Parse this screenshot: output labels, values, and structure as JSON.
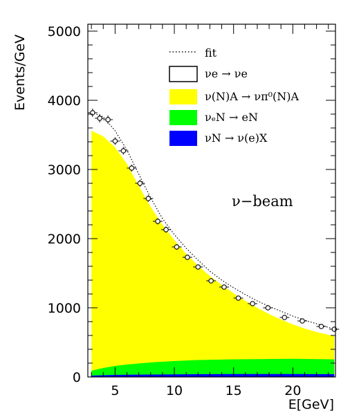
{
  "chart_data": {
    "type": "area",
    "xlabel": "E[GeV]",
    "ylabel": "Events/GeV",
    "xlim": [
      2.7,
      23.6
    ],
    "ylim": [
      0,
      5100
    ],
    "x_ticks": [
      5,
      10,
      15,
      20
    ],
    "y_ticks": [
      0,
      1000,
      2000,
      3000,
      4000,
      5000
    ],
    "annotation": "ν−beam",
    "legend_position": "top-right",
    "legend": [
      {
        "label": "fit",
        "style": "dotted-line",
        "color": "#000000"
      },
      {
        "label": "νe → νe",
        "style": "open-box",
        "color": "#ffffff"
      },
      {
        "label": "ν(N)A → νπ⁰(N)A",
        "style": "filled-box",
        "color": "#ffff00"
      },
      {
        "label": "νₑN → eN",
        "style": "filled-box",
        "color": "#00ff00"
      },
      {
        "label": "νN → ν(e)X",
        "style": "filled-box",
        "color": "#0000ff"
      }
    ],
    "series": [
      {
        "name": "νN → ν(e)X",
        "color": "#0000ff",
        "x": [
          3.0,
          4,
          5,
          6,
          8,
          10,
          12,
          15,
          18,
          20,
          23.5
        ],
        "y": [
          20,
          25,
          30,
          32,
          35,
          38,
          40,
          42,
          42,
          42,
          40
        ]
      },
      {
        "name": "νₑN → eN",
        "color": "#00ff00",
        "x": [
          3.0,
          4,
          5,
          6,
          8,
          10,
          12,
          15,
          18,
          20,
          23.5
        ],
        "y": [
          90,
          130,
          160,
          180,
          210,
          230,
          245,
          255,
          260,
          262,
          255
        ]
      },
      {
        "name": "ν(N)A → νπ⁰(N)A",
        "color": "#ffff00",
        "x": [
          3.0,
          4,
          5,
          6,
          7,
          8,
          9,
          10,
          11,
          12,
          13,
          14,
          15,
          16,
          17,
          18,
          19,
          20,
          21,
          22,
          23.5
        ],
        "y": [
          3560,
          3480,
          3320,
          3080,
          2760,
          2460,
          2200,
          1980,
          1780,
          1610,
          1460,
          1330,
          1210,
          1100,
          1000,
          910,
          830,
          760,
          700,
          650,
          590
        ]
      },
      {
        "name": "fit",
        "style": "dotted",
        "x": [
          3.0,
          4,
          5,
          6,
          7,
          8,
          9,
          10,
          11,
          12,
          13,
          14,
          15,
          16,
          17,
          18,
          19,
          20,
          21,
          22,
          23.5
        ],
        "y": [
          3830,
          3760,
          3560,
          3280,
          2930,
          2590,
          2290,
          2060,
          1860,
          1690,
          1530,
          1400,
          1290,
          1190,
          1100,
          1020,
          950,
          880,
          820,
          770,
          690
        ]
      }
    ],
    "data_points": {
      "name": "data",
      "x": [
        3.1,
        3.7,
        4.4,
        5.0,
        5.7,
        6.4,
        7.1,
        7.8,
        8.6,
        9.3,
        10.2,
        11.1,
        12.0,
        13.1,
        14.2,
        15.4,
        16.6,
        17.9,
        19.3,
        20.8,
        22.4,
        23.5
      ],
      "y": [
        3820,
        3740,
        3720,
        3410,
        3270,
        3020,
        2800,
        2580,
        2250,
        2130,
        1880,
        1730,
        1590,
        1390,
        1300,
        1140,
        1060,
        1000,
        860,
        810,
        730,
        690
      ],
      "yerr": [
        60,
        60,
        60,
        55,
        55,
        50,
        50,
        48,
        45,
        45,
        40,
        38,
        36,
        34,
        32,
        30,
        28,
        28,
        25,
        24,
        22,
        22
      ]
    }
  }
}
